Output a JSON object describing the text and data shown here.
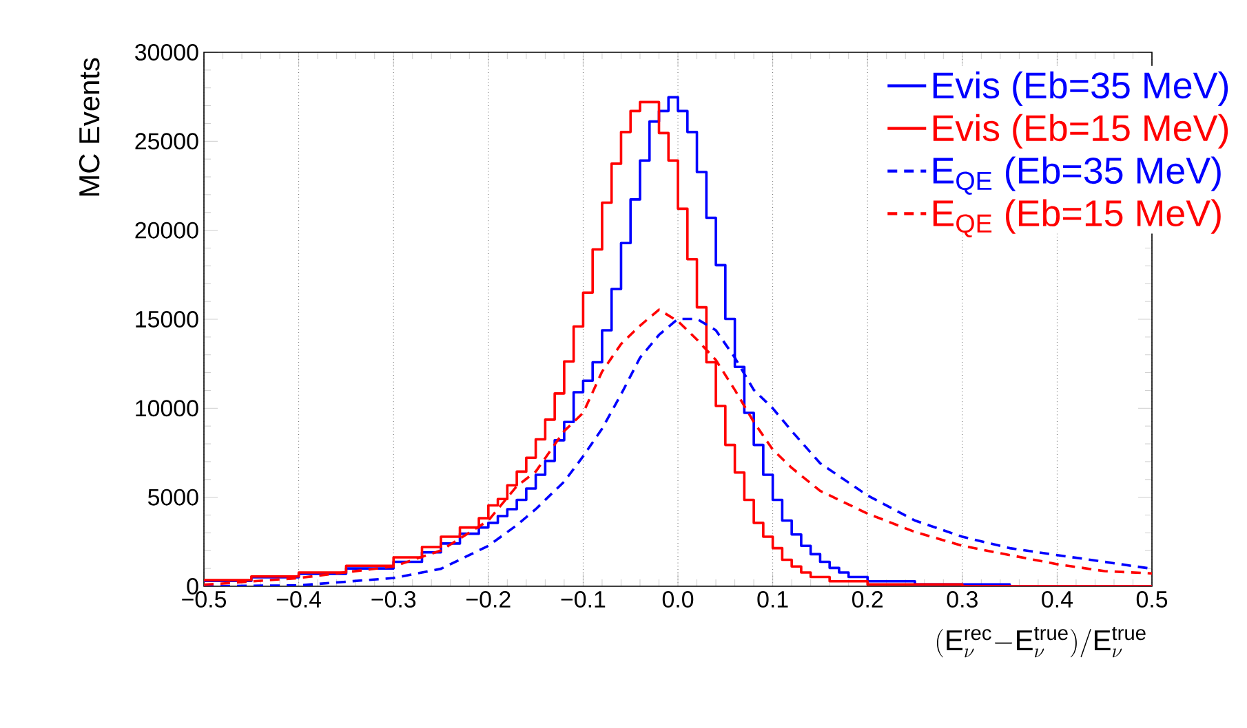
{
  "chart_data": {
    "type": "step",
    "xlabel": "(\\mathrm{E}_{\\nu}^{\\mathrm{rec}}\\mathrm{-}\\mathrm{E}_{\\nu}^{\\mathrm{true}})/\\mathrm{E}_{\\nu}^{\\mathrm{true}}",
    "ylabel": "MC Events",
    "xlim": [
      -0.5,
      0.5
    ],
    "ylim": [
      0,
      30000
    ],
    "xticks": [
      {
        "value": -0.5,
        "label": "−0.5"
      },
      {
        "value": -0.4,
        "label": "−0.4"
      },
      {
        "value": -0.3,
        "label": "−0.3"
      },
      {
        "value": -0.2,
        "label": "−0.2"
      },
      {
        "value": -0.1,
        "label": "−0.1"
      },
      {
        "value": 0,
        "label": "0.0"
      },
      0.1,
      0.2,
      0.3,
      0.4,
      0.5
    ],
    "yticks": [
      0,
      5000,
      10000,
      15000,
      20000,
      25000,
      30000
    ],
    "grid": "x",
    "legend": "top right",
    "series": [
      {
        "name": "Evis (Eb=35 MeV)",
        "color": "#0000ff",
        "line_style": "solid",
        "x": [
          -0.5,
          -0.45,
          -0.4,
          -0.35,
          -0.3,
          -0.27,
          -0.25,
          -0.23,
          -0.21,
          -0.2,
          -0.19,
          -0.18,
          -0.17,
          -0.16,
          -0.15,
          -0.14,
          -0.13,
          -0.12,
          -0.11,
          -0.1,
          -0.09,
          -0.08,
          -0.07,
          -0.06,
          -0.05,
          -0.04,
          -0.03,
          -0.02,
          -0.01,
          0.0,
          0.01,
          0.02,
          0.03,
          0.04,
          0.05,
          0.06,
          0.07,
          0.08,
          0.09,
          0.1,
          0.11,
          0.12,
          0.13,
          0.14,
          0.15,
          0.16,
          0.17,
          0.18,
          0.2,
          0.25,
          0.35,
          0.5
        ],
        "values": [
          300,
          500,
          700,
          1000,
          1370,
          1900,
          2400,
          2950,
          3300,
          3560,
          3940,
          4330,
          4850,
          5490,
          6260,
          7040,
          8200,
          9230,
          10900,
          11550,
          12580,
          14380,
          16700,
          19280,
          21730,
          23920,
          26110,
          26700,
          27470,
          26700,
          25520,
          23270,
          20700,
          18040,
          15020,
          12320,
          9740,
          7940,
          6260,
          4850,
          3690,
          2910,
          2270,
          1800,
          1370,
          1030,
          770,
          520,
          280,
          100,
          0,
          0
        ]
      },
      {
        "name": "Evis (Eb=15 MeV)",
        "color": "#ff0000",
        "line_style": "solid",
        "x": [
          -0.5,
          -0.45,
          -0.4,
          -0.35,
          -0.3,
          -0.27,
          -0.25,
          -0.23,
          -0.21,
          -0.2,
          -0.19,
          -0.18,
          -0.17,
          -0.16,
          -0.15,
          -0.14,
          -0.13,
          -0.12,
          -0.11,
          -0.1,
          -0.09,
          -0.08,
          -0.07,
          -0.06,
          -0.05,
          -0.04,
          -0.03,
          -0.02,
          -0.01,
          0.0,
          0.01,
          0.02,
          0.03,
          0.04,
          0.05,
          0.06,
          0.07,
          0.08,
          0.09,
          0.1,
          0.11,
          0.12,
          0.13,
          0.14,
          0.16,
          0.2,
          0.3,
          0.5
        ],
        "values": [
          340,
          550,
          770,
          1150,
          1620,
          2200,
          2780,
          3300,
          3820,
          4540,
          4900,
          5670,
          6440,
          7220,
          8250,
          9360,
          10830,
          12630,
          14590,
          16500,
          18920,
          21550,
          23740,
          25520,
          26700,
          27200,
          27200,
          25460,
          23920,
          21210,
          18370,
          15670,
          12580,
          10130,
          7940,
          6390,
          4850,
          3560,
          2780,
          2140,
          1490,
          1110,
          770,
          520,
          280,
          100,
          0,
          0
        ]
      },
      {
        "name": "E$_{QE}$ (Eb=35 MeV)",
        "color": "#0000ff",
        "type": "line",
        "line_style": "dashed",
        "x": [
          -0.5,
          -0.4,
          -0.3,
          -0.25,
          -0.2,
          -0.17,
          -0.15,
          -0.12,
          -0.1,
          -0.08,
          -0.06,
          -0.04,
          -0.02,
          0.0,
          0.02,
          0.04,
          0.06,
          0.08,
          0.1,
          0.12,
          0.15,
          0.2,
          0.25,
          0.3,
          0.35,
          0.4,
          0.45,
          0.5
        ],
        "values": [
          0,
          50,
          460,
          980,
          2270,
          3430,
          4330,
          5880,
          7300,
          8850,
          10780,
          12840,
          14120,
          15020,
          15020,
          14380,
          12840,
          11030,
          10000,
          8720,
          6910,
          5100,
          3690,
          2780,
          2140,
          1750,
          1370,
          980
        ]
      },
      {
        "name": "E$_{QE}$ (Eb=15 MeV)",
        "color": "#ff0000",
        "type": "line",
        "line_style": "dashed",
        "x": [
          -0.5,
          -0.4,
          -0.3,
          -0.25,
          -0.2,
          -0.17,
          -0.15,
          -0.12,
          -0.1,
          -0.08,
          -0.06,
          -0.04,
          -0.02,
          0.0,
          0.02,
          0.04,
          0.06,
          0.08,
          0.1,
          0.12,
          0.15,
          0.2,
          0.25,
          0.3,
          0.35,
          0.4,
          0.45,
          0.5
        ],
        "values": [
          80,
          460,
          1110,
          2010,
          3690,
          5620,
          6440,
          8720,
          9740,
          12060,
          13610,
          14640,
          15540,
          14890,
          13860,
          12710,
          11030,
          9230,
          7680,
          6650,
          5360,
          4080,
          3050,
          2270,
          1750,
          1240,
          850,
          720
        ]
      }
    ]
  }
}
